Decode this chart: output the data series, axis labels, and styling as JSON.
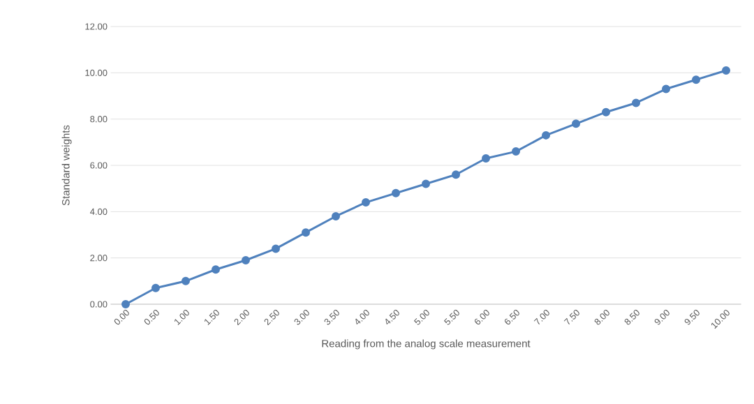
{
  "chart_data": {
    "type": "line",
    "xlabel": "Reading from the analog scale measurement",
    "ylabel": "Standard weights",
    "categories": [
      "0.00",
      "0.50",
      "1.00",
      "1.50",
      "2.00",
      "2.50",
      "3.00",
      "3.50",
      "4.00",
      "4.50",
      "5.00",
      "5.50",
      "6.00",
      "6.50",
      "7.00",
      "7.50",
      "8.00",
      "8.50",
      "9.00",
      "9.50",
      "10.00"
    ],
    "values": [
      0,
      0.7,
      1.0,
      1.5,
      1.9,
      2.4,
      3.1,
      3.8,
      4.4,
      4.8,
      5.2,
      5.6,
      6.3,
      6.6,
      7.3,
      7.8,
      8.3,
      8.7,
      9.3,
      9.7,
      10.1
    ],
    "color": "#4f81bd",
    "ylim": [
      0,
      12
    ],
    "yticks": [
      {
        "value": 0,
        "label": "0.00"
      },
      {
        "value": 2,
        "label": "2.00"
      },
      {
        "value": 4,
        "label": "4.00"
      },
      {
        "value": 6,
        "label": "6.00"
      },
      {
        "value": 8,
        "label": "8.00"
      },
      {
        "value": 10,
        "label": "10.00"
      },
      {
        "value": 12,
        "label": "12.00"
      }
    ],
    "grid": "y",
    "marker": "circle",
    "line_style": "solid"
  }
}
